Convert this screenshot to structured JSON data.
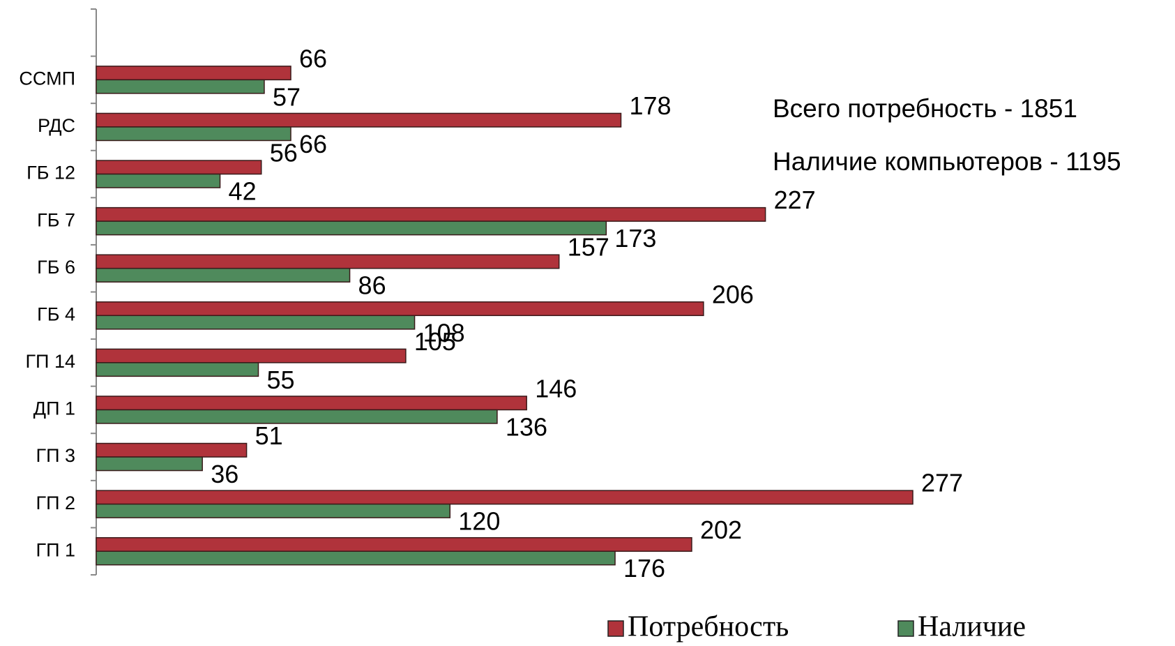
{
  "chart_data": {
    "type": "bar",
    "orientation": "horizontal",
    "categories": [
      null,
      "ССМП",
      "РДС",
      "ГБ 12",
      "ГБ 7",
      "ГБ 6",
      "ГБ 4",
      "ГП 14",
      "ДП 1",
      "ГП 3",
      "ГП 2",
      "ГП 1"
    ],
    "series": [
      {
        "name": "Потребность",
        "color": "#b0333b",
        "values": [
          null,
          66,
          178,
          56,
          227,
          157,
          206,
          105,
          146,
          51,
          277,
          202
        ]
      },
      {
        "name": "Наличие",
        "color": "#4f8a5c",
        "values": [
          null,
          57,
          66,
          42,
          173,
          86,
          108,
          55,
          136,
          36,
          120,
          176
        ]
      }
    ],
    "annotations": [
      "Всего потребность - 1851",
      "Наличие компьютеров - 1195"
    ],
    "legend": "bottom"
  }
}
